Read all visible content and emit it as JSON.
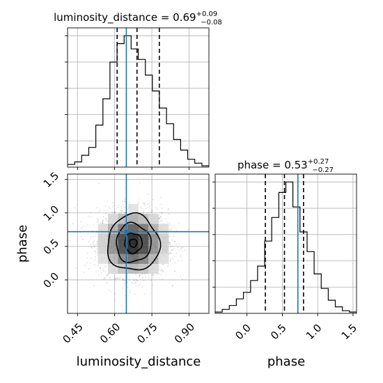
{
  "chart_data": [
    {
      "panel": "luminosity_distance-marginal",
      "type": "histogram",
      "title_param": "luminosity_distance",
      "title_value": "0.69",
      "title_plus": "+0.09",
      "title_minus": "−0.08",
      "xlim": [
        0.41,
        0.98
      ],
      "ylim": [
        0,
        1.06
      ],
      "bin_edges": [
        0.41,
        0.4385,
        0.467,
        0.4955,
        0.524,
        0.5525,
        0.581,
        0.6095,
        0.638,
        0.6665,
        0.695,
        0.7235,
        0.752,
        0.7805,
        0.809,
        0.8375,
        0.866,
        0.8945,
        0.923,
        0.9515,
        0.98
      ],
      "counts": [
        0.02,
        0.04,
        0.09,
        0.15,
        0.32,
        0.52,
        0.8,
        0.94,
        1.0,
        0.9,
        0.82,
        0.7,
        0.58,
        0.45,
        0.33,
        0.21,
        0.13,
        0.06,
        0.03,
        0.01
      ],
      "quantiles": [
        0.61,
        0.69,
        0.78
      ],
      "truth": 0.647
    },
    {
      "panel": "phase-marginal",
      "type": "histogram",
      "title_param": "phase",
      "title_value": "0.53",
      "title_plus": "+0.27",
      "title_minus": "−0.27",
      "xlim": [
        -0.45,
        1.55
      ],
      "ylim": [
        0,
        1.06
      ],
      "bin_edges": [
        -0.45,
        -0.35,
        -0.25,
        -0.15,
        -0.05,
        0.05,
        0.15,
        0.25,
        0.35,
        0.45,
        0.55,
        0.65,
        0.75,
        0.85,
        0.95,
        1.05,
        1.15,
        1.25,
        1.35,
        1.45,
        1.55
      ],
      "counts": [
        0.01,
        0.03,
        0.06,
        0.11,
        0.16,
        0.25,
        0.36,
        0.55,
        0.73,
        0.92,
        1.0,
        0.81,
        0.62,
        0.47,
        0.3,
        0.19,
        0.1,
        0.05,
        0.02,
        0.01
      ],
      "quantiles": [
        0.26,
        0.53,
        0.8
      ],
      "truth": 0.72
    },
    {
      "panel": "joint-2d",
      "type": "scatter",
      "xlim": [
        0.41,
        0.98
      ],
      "ylim": [
        -0.5,
        1.58
      ],
      "truth": {
        "x": 0.647,
        "y": 0.72
      },
      "center": {
        "x": 0.675,
        "y": 0.55
      },
      "spread": {
        "x": 0.07,
        "y": 0.25
      },
      "contour_levels": [
        {
          "rx": 0.015,
          "ry": 0.06
        },
        {
          "rx": 0.035,
          "ry": 0.15
        },
        {
          "rx": 0.07,
          "ry": 0.29
        },
        {
          "rx": 0.105,
          "ry": 0.42
        }
      ]
    }
  ],
  "axes": {
    "x_bottom_left": {
      "label": "luminosity_distance",
      "ticks": [
        "0.45",
        "0.60",
        "0.75",
        "0.90"
      ]
    },
    "x_bottom_right": {
      "label": "phase",
      "ticks": [
        "0.0",
        "0.5",
        "1.0",
        "1.5"
      ]
    },
    "y_left": {
      "label": "phase",
      "ticks": [
        "0.0",
        "0.5",
        "1.0",
        "1.5"
      ]
    }
  },
  "colors": {
    "truth": "#1f77b4",
    "hist": "#000000",
    "grid": "#b0b0b0"
  }
}
